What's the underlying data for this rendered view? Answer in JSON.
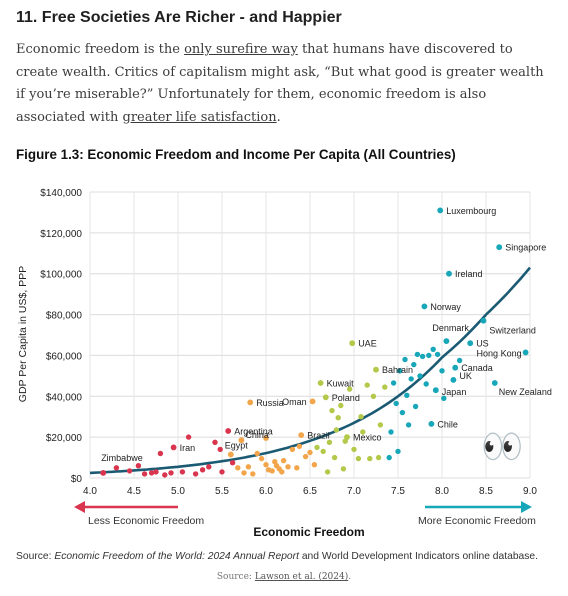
{
  "article": {
    "heading": "11. Free Societies Are Richer - and Happier",
    "para_1": "Economic freedom is the ",
    "link_1": "only surefire way",
    "para_2": " that humans have discovered to create wealth. Critics of capitalism might ask, “But what good is greater wealth if you’re miserable?” Unfortunately for them, economic freedom is also associated with ",
    "link_2": "greater life satisfaction",
    "para_3": "."
  },
  "figure": {
    "title": "Figure 1.3: Economic Freedom and Income Per Capita (All Countries)",
    "source_prefix": "Source: ",
    "source_italic": "Economic Freedom of the World: 2024 Annual Report",
    "source_suffix": " and World Development Indicators online database.",
    "left_arrow_label": "Less Economic Freedom",
    "right_arrow_label": "More Economic Freedom",
    "emoji": "👀",
    "colors": {
      "red": "#d9354f",
      "orange": "#f2a54a",
      "yellow": "#b3c94a",
      "teal": "#17a7b8",
      "curve": "#1b5a73",
      "left_arrow": "#d9354f",
      "right_arrow": "#17a7b8"
    }
  },
  "caption": {
    "prefix": "Source: ",
    "link": "Lawson et al. (2024)",
    "suffix": "."
  },
  "chart_data": {
    "type": "scatter",
    "xlabel": "Economic Freedom",
    "ylabel": "GDP Per Capita in US$, PPP",
    "xlim": [
      4.0,
      9.0
    ],
    "ylim": [
      0,
      140000
    ],
    "xticks": [
      "4.0",
      "4.5",
      "5.0",
      "5.5",
      "6.0",
      "6.5",
      "7.0",
      "7.5",
      "8.0",
      "8.5",
      "9.0"
    ],
    "yticks": [
      "$0",
      "$20,000",
      "$40,000",
      "$60,000",
      "$80,000",
      "$100,000",
      "$120,000",
      "$140,000"
    ],
    "grid": true,
    "trend": "exponential",
    "trendline": [
      [
        4.0,
        2500
      ],
      [
        4.5,
        3700
      ],
      [
        5.0,
        5500
      ],
      [
        5.5,
        8200
      ],
      [
        6.0,
        12200
      ],
      [
        6.5,
        18200
      ],
      [
        7.0,
        27000
      ],
      [
        7.5,
        40000
      ],
      [
        8.0,
        59000
      ],
      [
        8.5,
        80000
      ],
      [
        9.0,
        103000
      ]
    ],
    "labels": [
      {
        "name": "Zimbabwe",
        "x": 4.15,
        "y": 2500,
        "color": "red"
      },
      {
        "name": "Iran",
        "x": 4.95,
        "y": 15000,
        "color": "red"
      },
      {
        "name": "Argentina",
        "x": 5.57,
        "y": 23000,
        "color": "red"
      },
      {
        "name": "China",
        "x": 5.72,
        "y": 18500,
        "color": "orange"
      },
      {
        "name": "Egypt",
        "x": 5.6,
        "y": 11500,
        "color": "orange"
      },
      {
        "name": "Russia",
        "x": 5.82,
        "y": 37000,
        "color": "orange"
      },
      {
        "name": "Oman",
        "x": 6.53,
        "y": 37500,
        "color": "orange"
      },
      {
        "name": "Brazil",
        "x": 6.4,
        "y": 21000,
        "color": "orange"
      },
      {
        "name": "Kuwait",
        "x": 6.62,
        "y": 46500,
        "color": "yellow"
      },
      {
        "name": "Poland",
        "x": 6.68,
        "y": 39500,
        "color": "yellow"
      },
      {
        "name": "UAE",
        "x": 6.98,
        "y": 66000,
        "color": "yellow"
      },
      {
        "name": "Mexico",
        "x": 6.92,
        "y": 20000,
        "color": "yellow"
      },
      {
        "name": "Bahrain",
        "x": 7.25,
        "y": 53000,
        "color": "yellow"
      },
      {
        "name": "Luxembourg",
        "x": 7.98,
        "y": 131000,
        "color": "teal"
      },
      {
        "name": "Singapore",
        "x": 8.65,
        "y": 113000,
        "color": "teal"
      },
      {
        "name": "Ireland",
        "x": 8.08,
        "y": 100000,
        "color": "teal"
      },
      {
        "name": "Norway",
        "x": 7.8,
        "y": 84000,
        "color": "teal"
      },
      {
        "name": "Denmark",
        "x": 8.05,
        "y": 67000,
        "color": "teal"
      },
      {
        "name": "Switzerland",
        "x": 8.47,
        "y": 77000,
        "color": "teal"
      },
      {
        "name": "US",
        "x": 8.32,
        "y": 66000,
        "color": "teal"
      },
      {
        "name": "Hong Kong",
        "x": 8.95,
        "y": 61500,
        "color": "teal"
      },
      {
        "name": "Canada",
        "x": 8.15,
        "y": 54000,
        "color": "teal"
      },
      {
        "name": "UK",
        "x": 8.13,
        "y": 48000,
        "color": "teal"
      },
      {
        "name": "Japan",
        "x": 7.93,
        "y": 43000,
        "color": "teal"
      },
      {
        "name": "New Zealand",
        "x": 8.6,
        "y": 46500,
        "color": "teal"
      },
      {
        "name": "Chile",
        "x": 7.88,
        "y": 26500,
        "color": "teal"
      }
    ],
    "points": [
      {
        "x": 4.15,
        "y": 2500,
        "color": "red"
      },
      {
        "x": 4.3,
        "y": 5000,
        "color": "red"
      },
      {
        "x": 4.45,
        "y": 3500,
        "color": "red"
      },
      {
        "x": 4.55,
        "y": 6000,
        "color": "red"
      },
      {
        "x": 4.62,
        "y": 2000,
        "color": "red"
      },
      {
        "x": 4.7,
        "y": 2500,
        "color": "red"
      },
      {
        "x": 4.75,
        "y": 3000,
        "color": "red"
      },
      {
        "x": 4.8,
        "y": 12000,
        "color": "red"
      },
      {
        "x": 4.85,
        "y": 1500,
        "color": "red"
      },
      {
        "x": 4.92,
        "y": 2500,
        "color": "red"
      },
      {
        "x": 4.95,
        "y": 15000,
        "color": "red"
      },
      {
        "x": 5.05,
        "y": 3000,
        "color": "red"
      },
      {
        "x": 5.12,
        "y": 20000,
        "color": "red"
      },
      {
        "x": 5.2,
        "y": 2000,
        "color": "red"
      },
      {
        "x": 5.28,
        "y": 4000,
        "color": "red"
      },
      {
        "x": 5.35,
        "y": 5500,
        "color": "red"
      },
      {
        "x": 5.42,
        "y": 17500,
        "color": "red"
      },
      {
        "x": 5.48,
        "y": 14000,
        "color": "red"
      },
      {
        "x": 5.5,
        "y": 3000,
        "color": "red"
      },
      {
        "x": 5.57,
        "y": 23000,
        "color": "red"
      },
      {
        "x": 5.62,
        "y": 7500,
        "color": "red"
      },
      {
        "x": 5.6,
        "y": 11500,
        "color": "orange"
      },
      {
        "x": 5.68,
        "y": 5000,
        "color": "orange"
      },
      {
        "x": 5.72,
        "y": 18500,
        "color": "orange"
      },
      {
        "x": 5.75,
        "y": 2500,
        "color": "orange"
      },
      {
        "x": 5.8,
        "y": 5500,
        "color": "orange"
      },
      {
        "x": 5.82,
        "y": 37000,
        "color": "orange"
      },
      {
        "x": 5.85,
        "y": 2000,
        "color": "orange"
      },
      {
        "x": 5.9,
        "y": 12000,
        "color": "orange"
      },
      {
        "x": 5.95,
        "y": 9500,
        "color": "orange"
      },
      {
        "x": 6.0,
        "y": 6500,
        "color": "orange"
      },
      {
        "x": 6.0,
        "y": 19500,
        "color": "orange"
      },
      {
        "x": 6.03,
        "y": 4000,
        "color": "orange"
      },
      {
        "x": 6.07,
        "y": 3500,
        "color": "orange"
      },
      {
        "x": 6.1,
        "y": 8000,
        "color": "orange"
      },
      {
        "x": 6.12,
        "y": 6000,
        "color": "orange"
      },
      {
        "x": 6.15,
        "y": 4500,
        "color": "orange"
      },
      {
        "x": 6.18,
        "y": 3000,
        "color": "orange"
      },
      {
        "x": 6.2,
        "y": 8500,
        "color": "orange"
      },
      {
        "x": 6.25,
        "y": 5500,
        "color": "orange"
      },
      {
        "x": 6.3,
        "y": 14000,
        "color": "orange"
      },
      {
        "x": 6.35,
        "y": 5000,
        "color": "orange"
      },
      {
        "x": 6.38,
        "y": 15500,
        "color": "orange"
      },
      {
        "x": 6.4,
        "y": 21000,
        "color": "orange"
      },
      {
        "x": 6.45,
        "y": 10500,
        "color": "orange"
      },
      {
        "x": 6.5,
        "y": 12500,
        "color": "orange"
      },
      {
        "x": 6.53,
        "y": 37500,
        "color": "orange"
      },
      {
        "x": 6.55,
        "y": 6500,
        "color": "orange"
      },
      {
        "x": 6.58,
        "y": 15000,
        "color": "yellow"
      },
      {
        "x": 6.62,
        "y": 46500,
        "color": "yellow"
      },
      {
        "x": 6.65,
        "y": 13000,
        "color": "yellow"
      },
      {
        "x": 6.68,
        "y": 39500,
        "color": "yellow"
      },
      {
        "x": 6.7,
        "y": 3000,
        "color": "yellow"
      },
      {
        "x": 6.72,
        "y": 17500,
        "color": "yellow"
      },
      {
        "x": 6.75,
        "y": 33000,
        "color": "yellow"
      },
      {
        "x": 6.78,
        "y": 10000,
        "color": "yellow"
      },
      {
        "x": 6.8,
        "y": 23500,
        "color": "yellow"
      },
      {
        "x": 6.82,
        "y": 29500,
        "color": "yellow"
      },
      {
        "x": 6.85,
        "y": 35500,
        "color": "yellow"
      },
      {
        "x": 6.88,
        "y": 4500,
        "color": "yellow"
      },
      {
        "x": 6.9,
        "y": 18000,
        "color": "yellow"
      },
      {
        "x": 6.92,
        "y": 20000,
        "color": "yellow"
      },
      {
        "x": 6.95,
        "y": 43500,
        "color": "yellow"
      },
      {
        "x": 6.98,
        "y": 66000,
        "color": "yellow"
      },
      {
        "x": 7.0,
        "y": 14000,
        "color": "yellow"
      },
      {
        "x": 7.05,
        "y": 9500,
        "color": "yellow"
      },
      {
        "x": 7.08,
        "y": 30000,
        "color": "yellow"
      },
      {
        "x": 7.1,
        "y": 22500,
        "color": "yellow"
      },
      {
        "x": 7.15,
        "y": 45500,
        "color": "yellow"
      },
      {
        "x": 7.18,
        "y": 9500,
        "color": "yellow"
      },
      {
        "x": 7.22,
        "y": 40000,
        "color": "yellow"
      },
      {
        "x": 7.25,
        "y": 53000,
        "color": "yellow"
      },
      {
        "x": 7.28,
        "y": 10000,
        "color": "yellow"
      },
      {
        "x": 7.3,
        "y": 26000,
        "color": "yellow"
      },
      {
        "x": 7.35,
        "y": 44500,
        "color": "yellow"
      },
      {
        "x": 7.4,
        "y": 10000,
        "color": "teal"
      },
      {
        "x": 7.42,
        "y": 22500,
        "color": "teal"
      },
      {
        "x": 7.45,
        "y": 46500,
        "color": "teal"
      },
      {
        "x": 7.48,
        "y": 36500,
        "color": "teal"
      },
      {
        "x": 7.5,
        "y": 13000,
        "color": "teal"
      },
      {
        "x": 7.52,
        "y": 52500,
        "color": "teal"
      },
      {
        "x": 7.55,
        "y": 32000,
        "color": "teal"
      },
      {
        "x": 7.58,
        "y": 58000,
        "color": "teal"
      },
      {
        "x": 7.6,
        "y": 40500,
        "color": "teal"
      },
      {
        "x": 7.62,
        "y": 26000,
        "color": "teal"
      },
      {
        "x": 7.65,
        "y": 48500,
        "color": "teal"
      },
      {
        "x": 7.68,
        "y": 55500,
        "color": "teal"
      },
      {
        "x": 7.7,
        "y": 35000,
        "color": "teal"
      },
      {
        "x": 7.72,
        "y": 60500,
        "color": "teal"
      },
      {
        "x": 7.75,
        "y": 50000,
        "color": "teal"
      },
      {
        "x": 7.78,
        "y": 59500,
        "color": "teal"
      },
      {
        "x": 7.8,
        "y": 84000,
        "color": "teal"
      },
      {
        "x": 7.82,
        "y": 46000,
        "color": "teal"
      },
      {
        "x": 7.85,
        "y": 60000,
        "color": "teal"
      },
      {
        "x": 7.88,
        "y": 26500,
        "color": "teal"
      },
      {
        "x": 7.9,
        "y": 63000,
        "color": "teal"
      },
      {
        "x": 7.93,
        "y": 43000,
        "color": "teal"
      },
      {
        "x": 7.95,
        "y": 60500,
        "color": "teal"
      },
      {
        "x": 7.98,
        "y": 131000,
        "color": "teal"
      },
      {
        "x": 8.0,
        "y": 52500,
        "color": "teal"
      },
      {
        "x": 8.02,
        "y": 39000,
        "color": "teal"
      },
      {
        "x": 8.05,
        "y": 67000,
        "color": "teal"
      },
      {
        "x": 8.08,
        "y": 100000,
        "color": "teal"
      },
      {
        "x": 8.13,
        "y": 48000,
        "color": "teal"
      },
      {
        "x": 8.15,
        "y": 54000,
        "color": "teal"
      },
      {
        "x": 8.2,
        "y": 57500,
        "color": "teal"
      },
      {
        "x": 8.32,
        "y": 66000,
        "color": "teal"
      },
      {
        "x": 8.47,
        "y": 77000,
        "color": "teal"
      },
      {
        "x": 8.6,
        "y": 46500,
        "color": "teal"
      },
      {
        "x": 8.65,
        "y": 113000,
        "color": "teal"
      },
      {
        "x": 8.95,
        "y": 61500,
        "color": "teal"
      }
    ]
  }
}
